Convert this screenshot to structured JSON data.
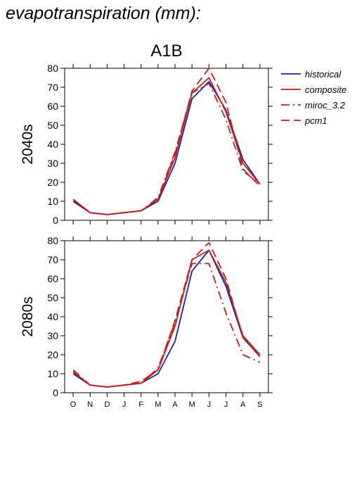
{
  "figure": {
    "title": "evapotranspiration (mm):",
    "panel_title": "A1B"
  },
  "legend": {
    "placement": "right",
    "entries": [
      {
        "label": "historical",
        "color": "#1f1fb4",
        "dash": "solid"
      },
      {
        "label": "composite",
        "color": "#c41e1e",
        "dash": "solid"
      },
      {
        "label": "miroc_3.2",
        "color": "#c41e1e",
        "dash": "dashdot"
      },
      {
        "label": "pcm1",
        "color": "#c41e1e",
        "dash": "dashed"
      }
    ]
  },
  "chart_data": [
    {
      "type": "line",
      "row_label": "2040s",
      "categories": [
        "O",
        "N",
        "D",
        "J",
        "F",
        "M",
        "A",
        "M",
        "J",
        "J",
        "A",
        "S"
      ],
      "ylim": [
        0,
        80
      ],
      "yticks": [
        0,
        10,
        20,
        30,
        40,
        50,
        60,
        70,
        80
      ],
      "grid": false,
      "series": [
        {
          "name": "historical",
          "values": [
            10,
            4,
            3,
            4,
            5,
            10,
            30,
            64,
            73,
            58,
            32,
            19
          ]
        },
        {
          "name": "composite",
          "values": [
            11,
            4,
            3,
            4,
            5,
            11,
            33,
            67,
            75,
            57,
            30,
            19
          ]
        },
        {
          "name": "miroc_3.2",
          "values": [
            11,
            4,
            3,
            4,
            5,
            12,
            36,
            67,
            72,
            53,
            26,
            19
          ]
        },
        {
          "name": "pcm1",
          "values": [
            11,
            4,
            3,
            4,
            5,
            11,
            35,
            68,
            80,
            62,
            27,
            18
          ]
        }
      ]
    },
    {
      "type": "line",
      "row_label": "2080s",
      "categories": [
        "O",
        "N",
        "D",
        "J",
        "F",
        "M",
        "A",
        "M",
        "J",
        "J",
        "A",
        "S"
      ],
      "ylim": [
        0,
        80
      ],
      "yticks": [
        0,
        10,
        20,
        30,
        40,
        50,
        60,
        70,
        80
      ],
      "grid": false,
      "series": [
        {
          "name": "historical",
          "values": [
            10,
            4,
            3,
            4,
            5,
            10,
            27,
            64,
            75,
            56,
            29,
            19
          ]
        },
        {
          "name": "composite",
          "values": [
            11,
            4,
            3,
            4,
            5,
            12,
            35,
            70,
            75,
            58,
            30,
            20
          ]
        },
        {
          "name": "miroc_3.2",
          "values": [
            12,
            4,
            3,
            4,
            5,
            13,
            37,
            68,
            68,
            42,
            20,
            16
          ]
        },
        {
          "name": "pcm1",
          "values": [
            11,
            4,
            3,
            4,
            6,
            12,
            38,
            70,
            79,
            60,
            29,
            19
          ]
        }
      ]
    }
  ]
}
